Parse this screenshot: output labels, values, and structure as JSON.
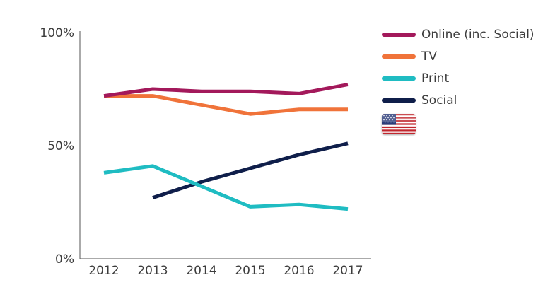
{
  "chart_data": {
    "type": "line",
    "categories": [
      "2012",
      "2013",
      "2014",
      "2015",
      "2016",
      "2017"
    ],
    "y_ticks": [
      "100%",
      "50%",
      "0%"
    ],
    "ylim": [
      0,
      100
    ],
    "grid": false,
    "legend_position": "top-right",
    "series": [
      {
        "name": "Online (inc. Social)",
        "color": "#a3195b",
        "values": [
          72,
          75,
          74,
          74,
          73,
          77
        ]
      },
      {
        "name": "TV",
        "color": "#f0733a",
        "values": [
          72,
          72,
          68,
          64,
          66,
          66
        ]
      },
      {
        "name": "Print",
        "color": "#1fbcc2",
        "values": [
          38,
          41,
          32,
          23,
          24,
          22
        ]
      },
      {
        "name": "Social",
        "color": "#0f1e4a",
        "values": [
          null,
          27,
          34,
          40,
          46,
          51
        ]
      }
    ]
  },
  "legend": {
    "flag_icon": "us-flag-icon"
  }
}
